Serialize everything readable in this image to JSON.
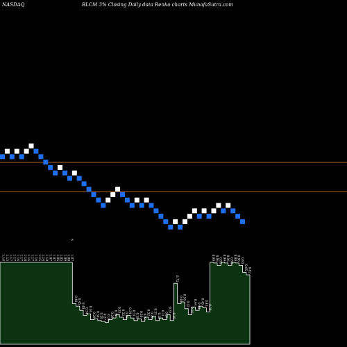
{
  "header": {
    "exchange": "NASDAQ",
    "title": "BLCM 3% Closing Daily data Renko charts MunafaSutra.com"
  },
  "chart_data": {
    "type": "renko",
    "title": "BLCM 3% Closing Daily data Renko charts MunafaSutra.com",
    "colors": {
      "background": "#000000",
      "up_brick": "#ffffff",
      "down_brick": "#1e6ef0",
      "reference_line": "#b4621e",
      "volume_fill": "#0b3312",
      "volume_outline": "#ffffff",
      "label_text": "#ffffff"
    },
    "reference_levels": [
      1.16,
      1.02
    ],
    "bricks": [
      {
        "level": 1.17,
        "dir": "down"
      },
      {
        "level": 1.2,
        "dir": "up"
      },
      {
        "level": 1.17,
        "dir": "down"
      },
      {
        "level": 1.2,
        "dir": "up"
      },
      {
        "level": 1.17,
        "dir": "down"
      },
      {
        "level": 1.2,
        "dir": "up"
      },
      {
        "level": 1.23,
        "dir": "up"
      },
      {
        "level": 1.2,
        "dir": "down"
      },
      {
        "level": 1.17,
        "dir": "down"
      },
      {
        "level": 1.14,
        "dir": "down"
      },
      {
        "level": 1.11,
        "dir": "down"
      },
      {
        "level": 1.08,
        "dir": "down"
      },
      {
        "level": 1.11,
        "dir": "up"
      },
      {
        "level": 1.08,
        "dir": "down"
      },
      {
        "level": 1.05,
        "dir": "down"
      },
      {
        "level": 1.08,
        "dir": "up"
      },
      {
        "level": 1.05,
        "dir": "down"
      },
      {
        "level": 1.02,
        "dir": "down"
      },
      {
        "level": 0.99,
        "dir": "down"
      },
      {
        "level": 0.96,
        "dir": "down"
      },
      {
        "level": 0.93,
        "dir": "down"
      },
      {
        "level": 0.9,
        "dir": "down"
      },
      {
        "level": 0.93,
        "dir": "up"
      },
      {
        "level": 0.96,
        "dir": "up"
      },
      {
        "level": 0.99,
        "dir": "up"
      },
      {
        "level": 0.96,
        "dir": "down"
      },
      {
        "level": 0.93,
        "dir": "down"
      },
      {
        "level": 0.9,
        "dir": "down"
      },
      {
        "level": 0.93,
        "dir": "up"
      },
      {
        "level": 0.9,
        "dir": "down"
      },
      {
        "level": 0.93,
        "dir": "up"
      },
      {
        "level": 0.9,
        "dir": "down"
      },
      {
        "level": 0.87,
        "dir": "down"
      },
      {
        "level": 0.84,
        "dir": "down"
      },
      {
        "level": 0.81,
        "dir": "down"
      },
      {
        "level": 0.78,
        "dir": "down"
      },
      {
        "level": 0.81,
        "dir": "up"
      },
      {
        "level": 0.78,
        "dir": "down"
      },
      {
        "level": 0.81,
        "dir": "up"
      },
      {
        "level": 0.84,
        "dir": "up"
      },
      {
        "level": 0.87,
        "dir": "up"
      },
      {
        "level": 0.84,
        "dir": "down"
      },
      {
        "level": 0.87,
        "dir": "up"
      },
      {
        "level": 0.84,
        "dir": "down"
      },
      {
        "level": 0.87,
        "dir": "up"
      },
      {
        "level": 0.9,
        "dir": "up"
      },
      {
        "level": 0.87,
        "dir": "down"
      },
      {
        "level": 0.9,
        "dir": "up"
      },
      {
        "level": 0.87,
        "dir": "down"
      },
      {
        "level": 0.84,
        "dir": "down"
      },
      {
        "level": 0.81,
        "dir": "down"
      }
    ],
    "volume_labels": [
      "1.16",
      "1.15",
      "1.17",
      "1.17",
      "1.16",
      "1.17",
      "1.18",
      "1.16",
      "1.17",
      "1.16",
      "1.15",
      "1.14",
      "1.10",
      "1.07",
      "1.07",
      "1.05",
      "1.05",
      "1.09",
      "1.08",
      "1.07",
      "0.48",
      "0.45",
      "0.40",
      "0.34",
      "0.36",
      "0.29",
      "0.30",
      "0.28",
      "0.27",
      "0.26",
      "0.29",
      "0.31",
      "0.35",
      "0.32",
      "0.29",
      "0.34",
      "0.31",
      "0.28",
      "0.30",
      "0.27",
      "0.32",
      "0.29",
      "0.33",
      "0.28",
      "0.31",
      "0.29",
      "0.35",
      "0.28",
      "0.72",
      "0.48",
      "0.50",
      "0.42",
      "0.35",
      "0.44",
      "0.40",
      "0.45",
      "0.43",
      "0.38",
      "0.99",
      "0.96",
      "0.93",
      "0.99",
      "0.96",
      "0.93",
      "0.99",
      "0.96",
      "0.93",
      "0.85",
      "0.82"
    ],
    "volume_heights": [
      1.16,
      1.15,
      1.17,
      1.17,
      1.16,
      1.17,
      1.18,
      1.16,
      1.17,
      1.16,
      1.15,
      1.14,
      1.1,
      1.07,
      1.07,
      1.05,
      1.05,
      1.09,
      1.08,
      1.07,
      0.48,
      0.45,
      0.4,
      0.34,
      0.36,
      0.29,
      0.3,
      0.28,
      0.27,
      0.26,
      0.29,
      0.31,
      0.35,
      0.32,
      0.29,
      0.34,
      0.31,
      0.28,
      0.3,
      0.27,
      0.32,
      0.29,
      0.33,
      0.28,
      0.31,
      0.29,
      0.35,
      0.28,
      0.72,
      0.48,
      0.5,
      0.42,
      0.35,
      0.44,
      0.4,
      0.45,
      0.43,
      0.38,
      0.99,
      0.96,
      0.93,
      0.99,
      0.96,
      0.93,
      0.99,
      0.96,
      0.93,
      0.85,
      0.82
    ],
    "extra_labels": [
      {
        "text": "6",
        "index": 19
      }
    ]
  }
}
